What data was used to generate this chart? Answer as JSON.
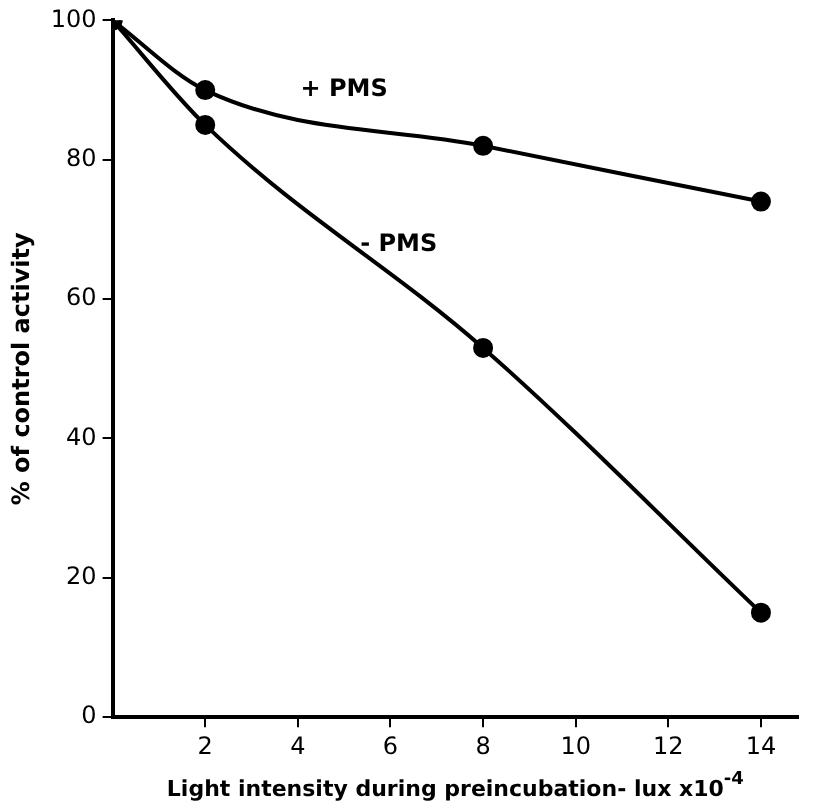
{
  "chart_data": {
    "type": "line",
    "xlabel": "Light intensity during preincubation- lux x10$^{-4}$",
    "ylabel": "% of control activity",
    "xlim": [
      0,
      14.8
    ],
    "xticks": [
      2,
      4,
      6,
      8,
      10,
      12,
      14
    ],
    "ylim": [
      0,
      100
    ],
    "yticks": [
      0,
      20,
      40,
      60,
      80,
      100
    ],
    "grid": false,
    "legend": false,
    "marker": "circle",
    "line_style": "solid",
    "series": [
      {
        "name": "+ PMS",
        "color": "#000000",
        "x": [
          0,
          2,
          8,
          14
        ],
        "values": [
          100,
          90,
          82,
          74
        ]
      },
      {
        "name": "- PMS",
        "color": "#000000",
        "x": [
          0,
          2,
          8,
          14
        ],
        "values": [
          100,
          85,
          53,
          15
        ]
      }
    ]
  }
}
